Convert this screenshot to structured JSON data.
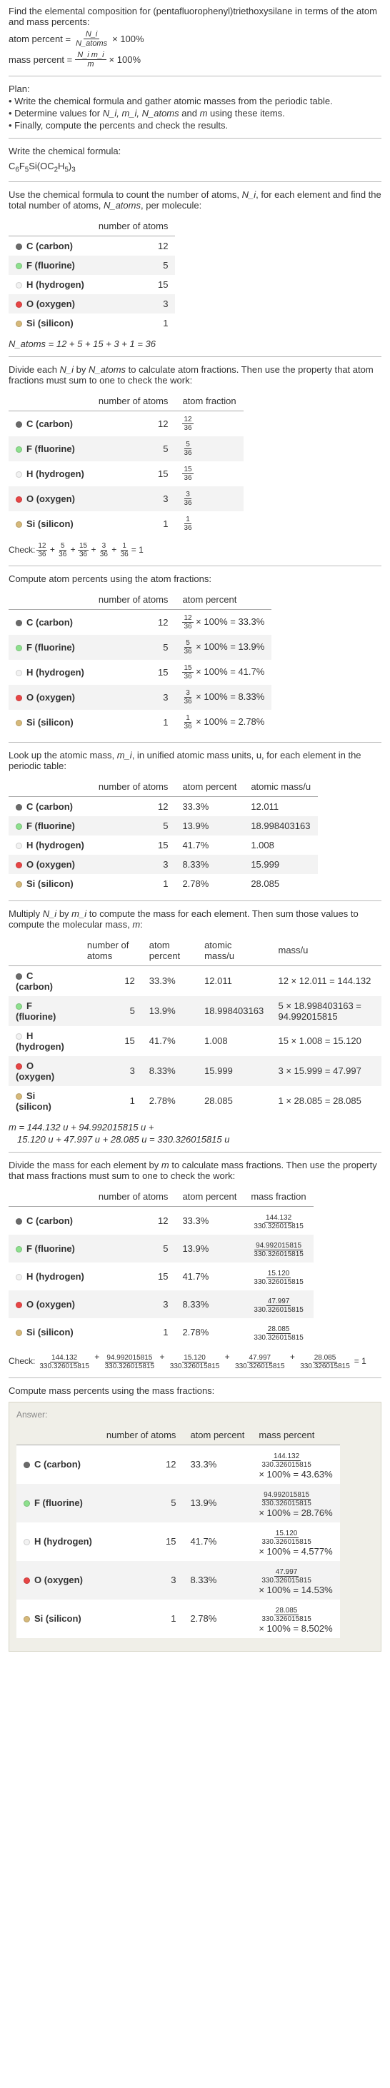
{
  "intro": {
    "line1": "Find the elemental composition for (pentafluorophenyl)triethoxysilane in terms of the atom and mass percents:",
    "atom_percent_label": "atom percent =",
    "atom_percent_times": "× 100%",
    "mass_percent_label": "mass percent =",
    "mass_percent_times": "× 100%",
    "frac1_num": "N_i",
    "frac1_den": "N_atoms",
    "frac2_num": "N_i m_i",
    "frac2_den": "m"
  },
  "plan": {
    "title": "Plan:",
    "l1": "• Write the chemical formula and gather atomic masses from the periodic table.",
    "l2_a": "• Determine values for ",
    "l2_b": "N_i, m_i, N_atoms",
    "l2_c": " and ",
    "l2_d": "m",
    "l2_e": " using these items.",
    "l3": "• Finally, compute the percents and check the results."
  },
  "chem_formula_label": "Write the chemical formula:",
  "chem_formula_parts": {
    "p1": "C",
    "s1": "6",
    "p2": "F",
    "s2": "5",
    "p3": "Si(OC",
    "s3": "2",
    "p4": "H",
    "s4": "5",
    "p5": ")",
    "s5": "3"
  },
  "count_text_a": "Use the chemical formula to count the number of atoms, ",
  "count_text_b": "N_i",
  "count_text_c": ", for each element and find the total number of atoms, ",
  "count_text_d": "N_atoms",
  "count_text_e": ", per molecule:",
  "elements": [
    {
      "name": "C (carbon)",
      "color": "#6b6b6b",
      "n": "12"
    },
    {
      "name": "F (fluorine)",
      "color": "#8de08d",
      "n": "5"
    },
    {
      "name": "H (hydrogen)",
      "color": "#f2f2f2",
      "n": "15"
    },
    {
      "name": "O (oxygen)",
      "color": "#e84545",
      "n": "3"
    },
    {
      "name": "Si (silicon)",
      "color": "#d6b97a",
      "n": "1"
    }
  ],
  "col_number_of_atoms": "number of atoms",
  "n_atoms_eq": "N_atoms = 12 + 5 + 15 + 3 + 1 = 36",
  "divide_text_a": "Divide each ",
  "divide_text_b": "N_i",
  "divide_text_c": " by ",
  "divide_text_d": "N_atoms",
  "divide_text_e": " to calculate atom fractions. Then use the property that atom fractions must sum to one to check the work:",
  "col_atom_fraction": "atom fraction",
  "fractions": [
    {
      "num": "12",
      "den": "36"
    },
    {
      "num": "5",
      "den": "36"
    },
    {
      "num": "15",
      "den": "36"
    },
    {
      "num": "3",
      "den": "36"
    },
    {
      "num": "1",
      "den": "36"
    }
  ],
  "check1_label": "Check:",
  "check1_eq": "= 1",
  "atom_percent_intro": "Compute atom percents using the atom fractions:",
  "col_atom_percent": "atom percent",
  "atom_percents": [
    {
      "num": "12",
      "den": "36",
      "result": "× 100% = 33.3%"
    },
    {
      "num": "5",
      "den": "36",
      "result": "× 100% = 13.9%"
    },
    {
      "num": "15",
      "den": "36",
      "result": "× 100% = 41.7%"
    },
    {
      "num": "3",
      "den": "36",
      "result": "× 100% = 8.33%"
    },
    {
      "num": "1",
      "den": "36",
      "result": "× 100% = 2.78%"
    }
  ],
  "atomic_mass_intro_a": "Look up the atomic mass, ",
  "atomic_mass_intro_b": "m_i",
  "atomic_mass_intro_c": ", in unified atomic mass units, u, for each element in the periodic table:",
  "col_atomic_mass": "atomic mass/u",
  "atom_percent_vals": [
    "33.3%",
    "13.9%",
    "41.7%",
    "8.33%",
    "2.78%"
  ],
  "atomic_masses": [
    "12.011",
    "18.998403163",
    "1.008",
    "15.999",
    "28.085"
  ],
  "multiply_intro_a": "Multiply ",
  "multiply_intro_b": "N_i",
  "multiply_intro_c": " by ",
  "multiply_intro_d": "m_i",
  "multiply_intro_e": " to compute the mass for each element. Then sum those values to compute the molecular mass, ",
  "multiply_intro_f": "m",
  "multiply_intro_g": ":",
  "col_mass": "mass/u",
  "mass_products": [
    "12 × 12.011 = 144.132",
    "5 × 18.998403163 = 94.992015815",
    "15 × 1.008 = 15.120",
    "3 × 15.999 = 47.997",
    "1 × 28.085 = 28.085"
  ],
  "m_line1": "m = 144.132 u + 94.992015815 u +",
  "m_line2": "15.120 u + 47.997 u + 28.085 u = 330.326015815 u",
  "mass_frac_intro_a": "Divide the mass for each element by ",
  "mass_frac_intro_b": "m",
  "mass_frac_intro_c": " to calculate mass fractions. Then use the property that mass fractions must sum to one to check the work:",
  "col_mass_fraction": "mass fraction",
  "mass_fractions": [
    {
      "num": "144.132",
      "den": "330.326015815"
    },
    {
      "num": "94.992015815",
      "den": "330.326015815"
    },
    {
      "num": "15.120",
      "den": "330.326015815"
    },
    {
      "num": "47.997",
      "den": "330.326015815"
    },
    {
      "num": "28.085",
      "den": "330.326015815"
    }
  ],
  "check2_eq": "= 1",
  "mass_percent_intro": "Compute mass percents using the mass fractions:",
  "answer_label": "Answer:",
  "col_mass_percent": "mass percent",
  "mass_percents": [
    {
      "num": "144.132",
      "den": "330.326015815",
      "res": "× 100% = 43.63%"
    },
    {
      "num": "94.992015815",
      "den": "330.326015815",
      "res": "× 100% = 28.76%"
    },
    {
      "num": "15.120",
      "den": "330.326015815",
      "res": "× 100% = 4.577%"
    },
    {
      "num": "47.997",
      "den": "330.326015815",
      "res": "× 100% = 14.53%"
    },
    {
      "num": "28.085",
      "den": "330.326015815",
      "res": "× 100% = 8.502%"
    }
  ]
}
